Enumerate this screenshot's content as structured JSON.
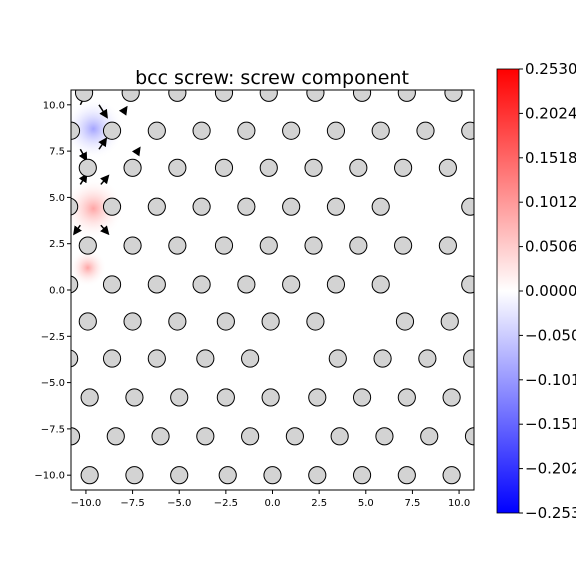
{
  "chart_data": {
    "type": "scatter",
    "title": "bcc screw: screw component",
    "xlabel": "",
    "ylabel": "",
    "xlim": [
      -10.8,
      10.8
    ],
    "ylim": [
      -10.8,
      10.8
    ],
    "xticks": [
      -10.0,
      -7.5,
      -5.0,
      -2.5,
      0.0,
      2.5,
      5.0,
      7.5,
      10.0
    ],
    "yticks": [
      -10.0,
      -7.5,
      -5.0,
      -2.5,
      0.0,
      2.5,
      5.0,
      7.5,
      10.0
    ],
    "xtick_labels": [
      "−10.0",
      "−7.5",
      "−5.0",
      "−2.5",
      "0.0",
      "2.5",
      "5.0",
      "7.5",
      "10.0"
    ],
    "ytick_labels": [
      "−10.0",
      "−7.5",
      "−5.0",
      "−2.5",
      "0.0",
      "2.5",
      "5.0",
      "7.5",
      "10.0"
    ],
    "grid": false,
    "atom_color": "#d3d3d3",
    "atom_edge_color": "#000000",
    "colormap": "bwr",
    "colorbar": {
      "vmin": -0.253,
      "vmax": 0.253,
      "ticks": [
        0.253,
        0.2024,
        0.1518,
        0.1012,
        0.0506,
        0.0,
        -0.0506,
        -0.1012,
        -0.1518,
        -0.2024,
        -0.253
      ],
      "tick_labels": [
        "0.2530",
        "0.2024",
        "0.1518",
        "0.1012",
        "0.0506",
        "0.0000",
        "−0.0506",
        "−0.1012",
        "−0.1518",
        "−0.2024",
        "−0.2530"
      ]
    },
    "heat_spots": [
      {
        "x": -9.6,
        "y": 8.7,
        "value": -0.16
      },
      {
        "x": -9.6,
        "y": 4.4,
        "value": 0.16
      },
      {
        "x": -9.9,
        "y": 1.2,
        "value": 0.07
      }
    ],
    "atom_rows": [
      {
        "y": 10.65,
        "x": [
          -10.1,
          -7.6,
          -5.1,
          -2.6,
          -0.2,
          2.3,
          4.8,
          7.2,
          9.7
        ]
      },
      {
        "y": 8.6,
        "x": [
          -10.8,
          -8.6,
          -6.2,
          -3.8,
          -1.4,
          1.0,
          3.4,
          5.8,
          8.2,
          10.6
        ]
      },
      {
        "y": 6.6,
        "x": [
          -9.9,
          -7.5,
          -5.1,
          -2.6,
          -0.2,
          2.2,
          4.6,
          7.0,
          9.4
        ]
      },
      {
        "y": 4.5,
        "x": [
          -10.9,
          -8.6,
          -6.2,
          -3.8,
          -1.4,
          1.0,
          3.4,
          5.8,
          10.6
        ]
      },
      {
        "y": 2.4,
        "x": [
          -9.9,
          -7.5,
          -5.1,
          -2.6,
          -0.2,
          2.2,
          4.6,
          7.0,
          9.4
        ]
      },
      {
        "y": 0.3,
        "x": [
          -10.9,
          -8.6,
          -6.2,
          -3.8,
          -1.4,
          1.0,
          3.4,
          5.8,
          10.6
        ]
      },
      {
        "y": -1.7,
        "x": [
          -9.9,
          -7.5,
          -5.1,
          -2.5,
          -0.1,
          2.3,
          7.1,
          9.5
        ]
      },
      {
        "y": -3.7,
        "x": [
          -10.9,
          -8.6,
          -6.2,
          -3.6,
          -1.2,
          3.5,
          5.9,
          8.3,
          10.7
        ]
      },
      {
        "y": -5.8,
        "x": [
          -9.8,
          -7.4,
          -5.0,
          -2.5,
          -0.1,
          2.4,
          4.8,
          7.2,
          9.6
        ]
      },
      {
        "y": -7.9,
        "x": [
          -10.8,
          -8.4,
          -6.0,
          -3.6,
          -1.2,
          1.2,
          3.6,
          6.0,
          8.4,
          10.8
        ]
      },
      {
        "y": -10.0,
        "x": [
          -9.8,
          -7.4,
          -5.0,
          -2.4,
          0.0,
          2.4,
          4.8,
          7.2,
          9.6
        ]
      }
    ],
    "arrows": [
      {
        "x": -10.3,
        "y": 10.0,
        "dx": 0.25,
        "dy": 0.5
      },
      {
        "x": -9.3,
        "y": 10.0,
        "dx": 0.35,
        "dy": -0.55
      },
      {
        "x": -9.3,
        "y": 7.6,
        "dx": 0.3,
        "dy": 0.45
      },
      {
        "x": -10.3,
        "y": 7.6,
        "dx": 0.25,
        "dy": -0.45
      },
      {
        "x": -10.3,
        "y": 5.7,
        "dx": 0.25,
        "dy": 0.4
      },
      {
        "x": -9.2,
        "y": 5.7,
        "dx": 0.3,
        "dy": 0.35
      },
      {
        "x": -9.2,
        "y": 3.5,
        "dx": 0.3,
        "dy": -0.35
      },
      {
        "x": -10.3,
        "y": 3.5,
        "dx": -0.25,
        "dy": -0.35
      },
      {
        "x": -8.0,
        "y": 9.6,
        "dx": 0.1,
        "dy": 0.15
      },
      {
        "x": -7.3,
        "y": 7.4,
        "dx": 0.1,
        "dy": 0.15
      }
    ]
  }
}
